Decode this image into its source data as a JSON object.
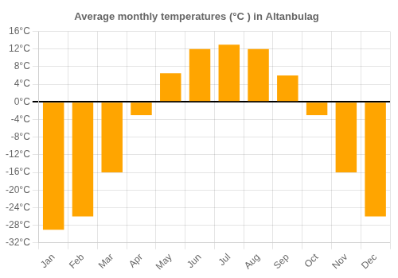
{
  "chart_data": {
    "type": "bar",
    "title": "Average monthly temperatures (°C ) in Altanbulag",
    "categories": [
      "Jan",
      "Feb",
      "Mar",
      "Apr",
      "May",
      "Jun",
      "Jul",
      "Aug",
      "Sep",
      "Oct",
      "Nov",
      "Dec"
    ],
    "values": [
      -29,
      -26,
      -16,
      -3,
      6.5,
      12,
      13,
      12,
      6,
      -3,
      -16,
      -26
    ],
    "color": "#FFA500",
    "ylim": [
      -32,
      16
    ],
    "yticks": [
      {
        "value": -32,
        "label": "-32°C"
      },
      {
        "value": -28,
        "label": "-28°C"
      },
      {
        "value": -24,
        "label": "-24°C"
      },
      {
        "value": -20,
        "label": "-20°C"
      },
      {
        "value": -16,
        "label": "-16°C"
      },
      {
        "value": -12,
        "label": "-12°C"
      },
      {
        "value": -8,
        "label": "-8°C"
      },
      {
        "value": -4,
        "label": "-4°C"
      },
      {
        "value": 0,
        "label": "0°C"
      },
      {
        "value": 4,
        "label": "4°C"
      },
      {
        "value": 8,
        "label": "8°C"
      },
      {
        "value": 12,
        "label": "12°C"
      },
      {
        "value": 16,
        "label": "16°C"
      }
    ],
    "grid": true
  }
}
